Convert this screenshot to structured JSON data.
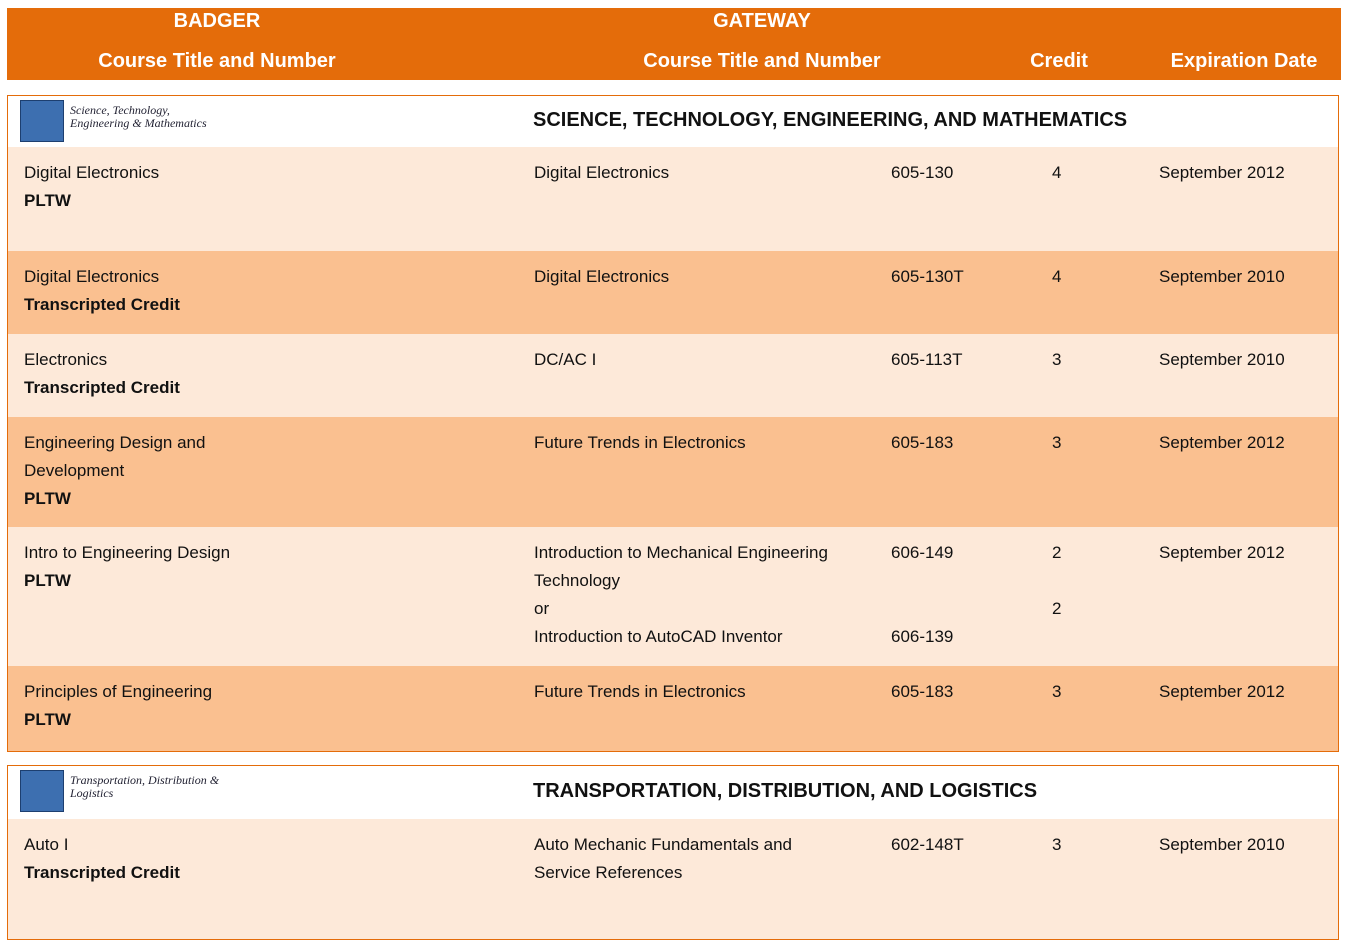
{
  "header": {
    "left_top": "BADGER",
    "left_bottom": "Course Title and Number",
    "mid_top": "GATEWAY",
    "mid_bottom": "Course Title and Number",
    "credit": "Credit",
    "expiration": "Expiration Date"
  },
  "sections": [
    {
      "logo_text": "Science, Technology, Engineering & Mathematics",
      "title": "SCIENCE, TECHNOLOGY, ENGINEERING, AND MATHEMATICS",
      "rows": [
        {
          "badger_title": "Digital Electronics",
          "badger_type": "PLTW",
          "gateway": [
            "Digital Electronics"
          ],
          "numbers": [
            "605-130"
          ],
          "credits": [
            "4"
          ],
          "expiration": "September 2012"
        },
        {
          "badger_title": "Digital Electronics",
          "badger_type": "Transcripted Credit",
          "gateway": [
            "Digital Electronics"
          ],
          "numbers": [
            "605-130T"
          ],
          "credits": [
            "4"
          ],
          "expiration": "September 2010"
        },
        {
          "badger_title": "Electronics",
          "badger_type": "Transcripted Credit",
          "gateway": [
            "DC/AC I"
          ],
          "numbers": [
            "605-113T"
          ],
          "credits": [
            "3"
          ],
          "expiration": "September 2010"
        },
        {
          "badger_title": "Engineering Design and Development",
          "badger_type": "PLTW",
          "gateway": [
            "Future Trends in Electronics"
          ],
          "numbers": [
            "605-183"
          ],
          "credits": [
            "3"
          ],
          "expiration": "September 2012"
        },
        {
          "badger_title": "Intro to Engineering Design",
          "badger_type": "PLTW",
          "gateway": [
            "Introduction to Mechanical Engineering Technology",
            "or",
            "Introduction to AutoCAD Inventor"
          ],
          "numbers": [
            "606-149",
            "606-139"
          ],
          "credits": [
            "2",
            "2"
          ],
          "expiration": "September 2012"
        },
        {
          "badger_title": "Principles of Engineering",
          "badger_type": "PLTW",
          "gateway": [
            "Future Trends in Electronics"
          ],
          "numbers": [
            "605-183"
          ],
          "credits": [
            "3"
          ],
          "expiration": "September 2012"
        }
      ]
    },
    {
      "logo_text": "Transportation, Distribution & Logistics",
      "title": "TRANSPORTATION, DISTRIBUTION, AND LOGISTICS",
      "rows": [
        {
          "badger_title": "Auto I",
          "badger_type": "Transcripted Credit",
          "gateway": [
            "Auto Mechanic Fundamentals and Service References"
          ],
          "numbers": [
            "602-148T"
          ],
          "credits": [
            "3"
          ],
          "expiration": "September 2010"
        }
      ]
    }
  ]
}
